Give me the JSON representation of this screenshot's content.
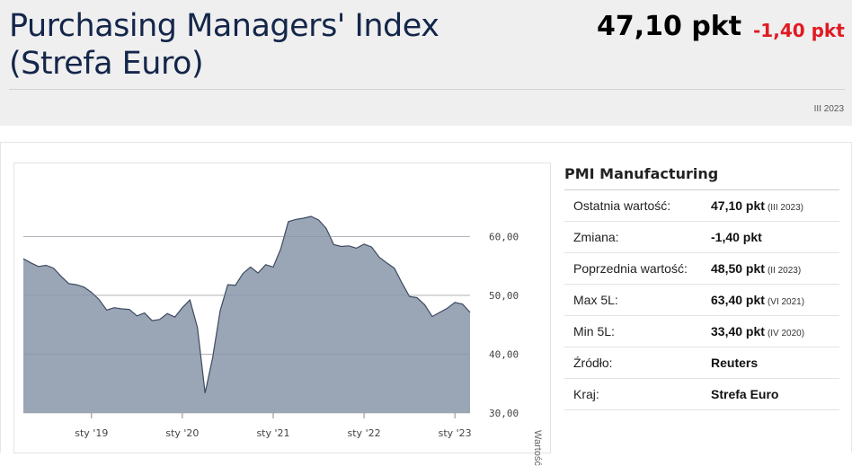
{
  "header": {
    "title": "Purchasing Managers' Index (Strefa Euro)",
    "value": "47,10 pkt",
    "change": "-1,40 pkt",
    "period": "III 2023"
  },
  "table": {
    "title": "PMI Manufacturing",
    "rows": [
      {
        "label": "Ostatnia wartość:",
        "value": "47,10 pkt",
        "note": "(III 2023)"
      },
      {
        "label": "Zmiana:",
        "value": "-1,40 pkt",
        "note": ""
      },
      {
        "label": "Poprzednia wartość:",
        "value": "48,50 pkt",
        "note": "(II 2023)"
      },
      {
        "label": "Max 5L:",
        "value": "63,40 pkt",
        "note": "(VI 2021)"
      },
      {
        "label": "Min 5L:",
        "value": "33,40 pkt",
        "note": "(IV 2020)"
      },
      {
        "label": "Źródło:",
        "value": "Reuters",
        "note": ""
      },
      {
        "label": "Kraj:",
        "value": "Strefa Euro",
        "note": ""
      }
    ]
  },
  "chart_data": {
    "type": "area",
    "ylabel": "Wartość",
    "ylim": [
      30,
      66
    ],
    "yticks": [
      "30,00",
      "40,00",
      "50,00",
      "60,00"
    ],
    "xticks": [
      "sty '19",
      "sty '20",
      "sty '21",
      "sty '22",
      "sty '23"
    ],
    "fill_color": "#9aa6b6",
    "line_color": "#3d4a60",
    "x": [
      "2018-04",
      "2018-05",
      "2018-06",
      "2018-07",
      "2018-08",
      "2018-09",
      "2018-10",
      "2018-11",
      "2018-12",
      "2019-01",
      "2019-02",
      "2019-03",
      "2019-04",
      "2019-05",
      "2019-06",
      "2019-07",
      "2019-08",
      "2019-09",
      "2019-10",
      "2019-11",
      "2019-12",
      "2020-01",
      "2020-02",
      "2020-03",
      "2020-04",
      "2020-05",
      "2020-06",
      "2020-07",
      "2020-08",
      "2020-09",
      "2020-10",
      "2020-11",
      "2020-12",
      "2021-01",
      "2021-02",
      "2021-03",
      "2021-04",
      "2021-05",
      "2021-06",
      "2021-07",
      "2021-08",
      "2021-09",
      "2021-10",
      "2021-11",
      "2021-12",
      "2022-01",
      "2022-02",
      "2022-03",
      "2022-04",
      "2022-05",
      "2022-06",
      "2022-07",
      "2022-08",
      "2022-09",
      "2022-10",
      "2022-11",
      "2022-12",
      "2023-01",
      "2023-02",
      "2023-03"
    ],
    "values": [
      56.2,
      55.5,
      54.9,
      55.1,
      54.6,
      53.2,
      52.0,
      51.8,
      51.4,
      50.5,
      49.3,
      47.5,
      47.9,
      47.7,
      47.6,
      46.5,
      47.0,
      45.7,
      45.9,
      46.9,
      46.3,
      47.9,
      49.2,
      44.5,
      33.4,
      39.4,
      47.4,
      51.8,
      51.7,
      53.7,
      54.8,
      53.8,
      55.2,
      54.8,
      57.9,
      62.5,
      62.9,
      63.1,
      63.4,
      62.8,
      61.4,
      58.6,
      58.3,
      58.4,
      58.0,
      58.7,
      58.2,
      56.5,
      55.5,
      54.6,
      52.1,
      49.8,
      49.6,
      48.4,
      46.4,
      47.1,
      47.8,
      48.8,
      48.5,
      47.1
    ]
  }
}
